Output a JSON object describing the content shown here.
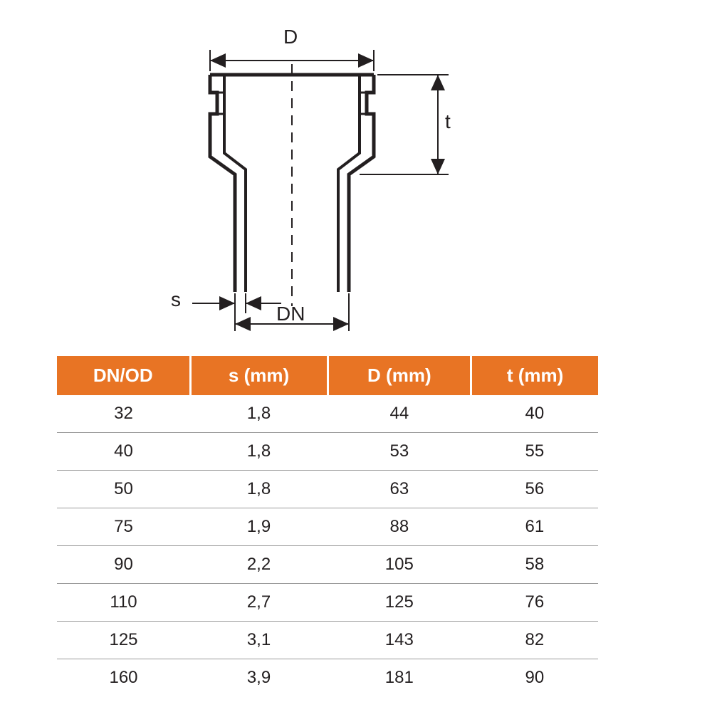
{
  "diagram": {
    "labels": {
      "D": "D",
      "t": "t",
      "s": "s",
      "DN": "DN"
    },
    "stroke_color": "#231f20",
    "stroke_width_main": 5,
    "stroke_width_dim": 2,
    "dash_pattern": "14 10",
    "label_fontsize": 28,
    "label_color": "#231f20"
  },
  "table": {
    "type": "table",
    "header_bg": "#e87424",
    "header_fg": "#ffffff",
    "header_fontsize": 26,
    "cell_fontsize": 24,
    "cell_color": "#231f20",
    "row_border_color": "#9a9a9a",
    "columns": [
      "DN/OD",
      "s (mm)",
      "D (mm)",
      "t (mm)"
    ],
    "rows": [
      [
        "32",
        "1,8",
        "44",
        "40"
      ],
      [
        "40",
        "1,8",
        "53",
        "55"
      ],
      [
        "50",
        "1,8",
        "63",
        "56"
      ],
      [
        "75",
        "1,9",
        "88",
        "61"
      ],
      [
        "90",
        "2,2",
        "105",
        "58"
      ],
      [
        "110",
        "2,7",
        "125",
        "76"
      ],
      [
        "125",
        "3,1",
        "143",
        "82"
      ],
      [
        "160",
        "3,9",
        "181",
        "90"
      ]
    ]
  }
}
